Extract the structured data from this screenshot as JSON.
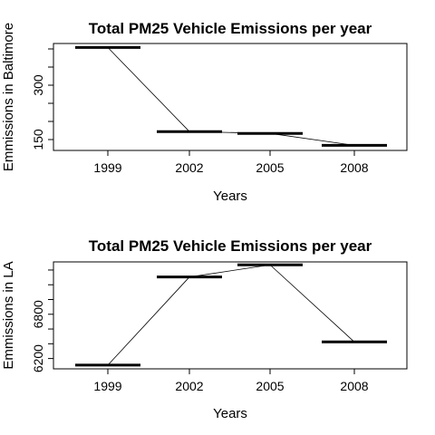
{
  "chart_data": [
    {
      "type": "line",
      "title": "Total PM25 Vehicle Emissions per year",
      "xlabel": "Years",
      "ylabel": "Emmissions in Baltimore",
      "categories": [
        "1999",
        "2002",
        "2005",
        "2008"
      ],
      "values": [
        404,
        172,
        167,
        134
      ],
      "yticks": [
        150,
        300
      ],
      "ylim": [
        120,
        415
      ],
      "grid": false
    },
    {
      "type": "line",
      "title": "Total PM25 Vehicle Emissions per year",
      "xlabel": "Years",
      "ylabel": "Emmissions in LA",
      "categories": [
        "1999",
        "2002",
        "2005",
        "2008"
      ],
      "values": [
        6110,
        7305,
        7470,
        6425
      ],
      "yticks": [
        6200,
        6800
      ],
      "minor_yticks": [
        6200,
        6400,
        6600,
        6800,
        7000,
        7200,
        7400
      ],
      "ylim": [
        6060,
        7510
      ],
      "grid": false
    }
  ]
}
